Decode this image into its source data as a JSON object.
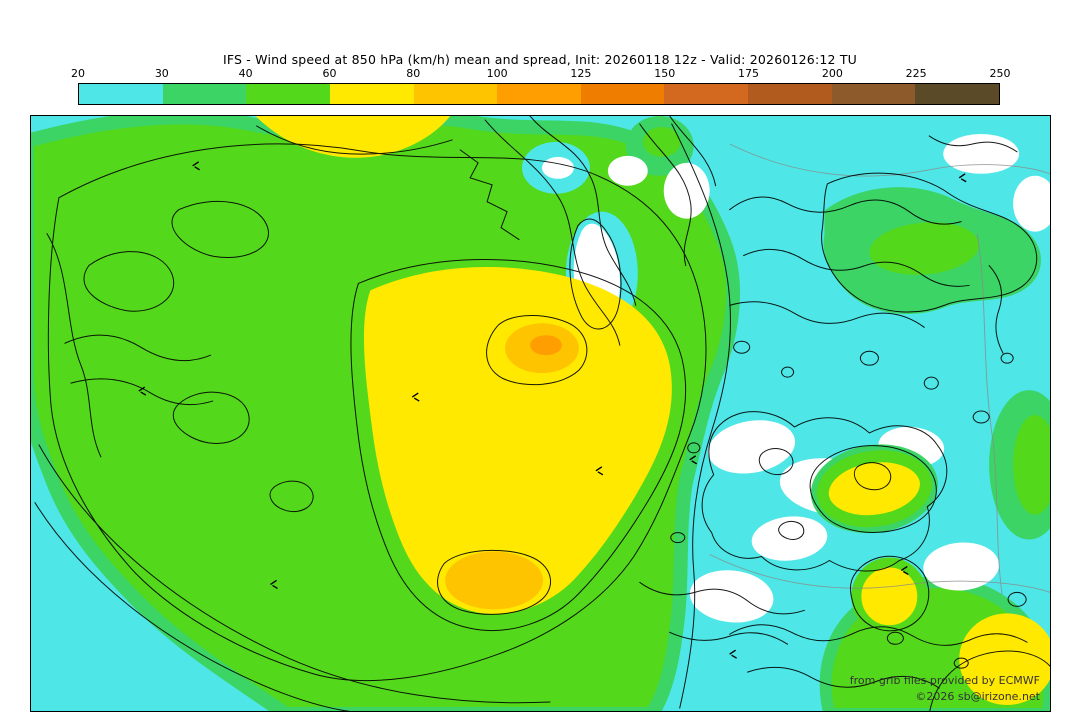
{
  "title": "IFS - Wind speed at 850 hPa (km/h) mean and spread, Init: 20260118 12z - Valid: 20260126:12 TU",
  "colorbar": {
    "unit": "km/h",
    "ticks": [
      "20",
      "30",
      "40",
      "60",
      "80",
      "100",
      "125",
      "150",
      "175",
      "200",
      "225",
      "250"
    ],
    "segment_colors": [
      "#4ee6e6",
      "#3bd465",
      "#53d81c",
      "#ffe900",
      "#ffc400",
      "#ff9e00",
      "#ef7d00",
      "#d2691e",
      "#b25b1e",
      "#8c5a2b",
      "#5a4a28"
    ]
  },
  "map": {
    "white_below_min": "#ffffff",
    "contour_color": "#000000",
    "coastline_color": "#8a8a8a",
    "attribution_line1": "from grib files provided by ECMWF",
    "attribution_line2": "©2026 sb@irizone.net"
  },
  "chart_data": {
    "type": "heatmap",
    "title": "IFS - Wind speed at 850 hPa (km/h) mean and spread",
    "init": "20260118 12z",
    "valid": "20260126:12 TU",
    "units": "km/h",
    "scale_ticks": [
      20,
      30,
      40,
      60,
      80,
      100,
      125,
      150,
      175,
      200,
      225,
      250
    ],
    "scale_colors": [
      "#4ee6e6",
      "#3bd465",
      "#53d81c",
      "#ffe900",
      "#ffc400",
      "#ff9e00",
      "#ef7d00",
      "#d2691e",
      "#b25b1e",
      "#8c5a2b",
      "#5a4a28"
    ],
    "legend_position": "top",
    "grid": false,
    "regions": [
      {
        "area": "west and central (left two-thirds of domain)",
        "value_kmh": "40-60",
        "color": "green"
      },
      {
        "area": "inner central maximum",
        "value_kmh": "60-80",
        "color": "yellow"
      },
      {
        "area": "central core spot and south-central spot",
        "value_kmh": "80-125",
        "color": "orange"
      },
      {
        "area": "eastern half background",
        "value_kmh": "20-30",
        "color": "cyan"
      },
      {
        "area": "scattered eastern patches",
        "value_kmh": "< 20",
        "color": "white"
      },
      {
        "area": "overlaid black lines",
        "value_kmh": "ensemble spread contours",
        "color": "black"
      }
    ]
  }
}
